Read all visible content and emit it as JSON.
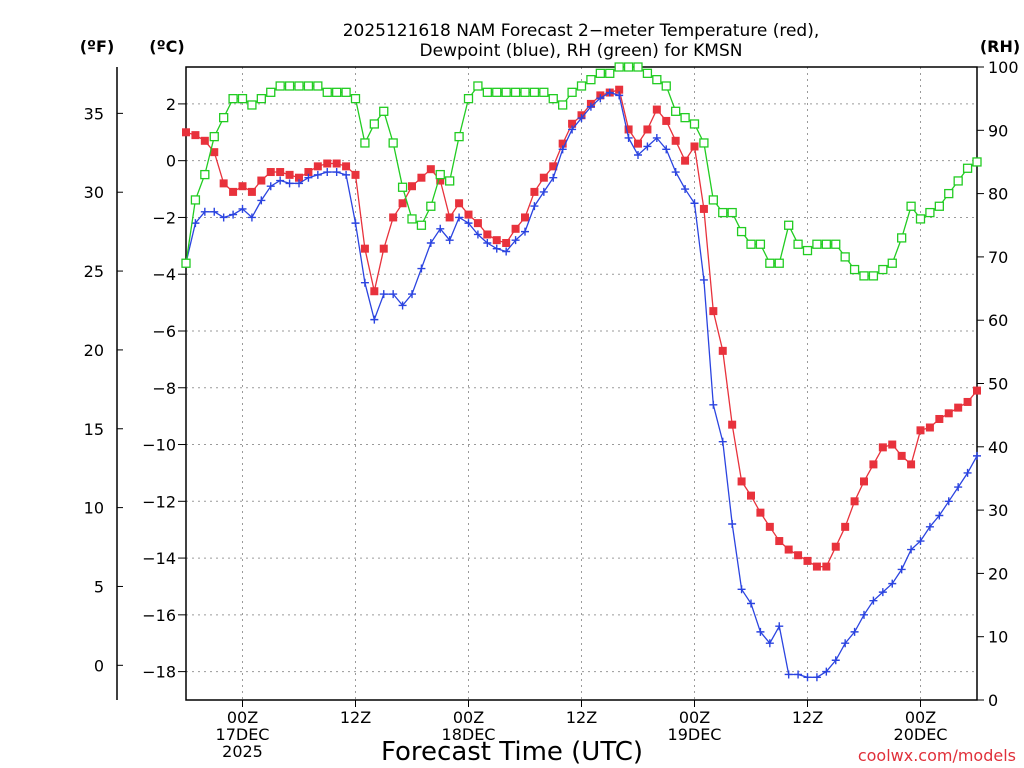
{
  "chart_data": {
    "type": "line",
    "title": "2025121618 NAM Forecast 2-meter Temperature (red), Dewpoint (blue), RH (green) for KMSN",
    "title_lines": [
      "2025121618 NAM Forecast 2−meter Temperature (red),",
      "Dewpoint (blue), RH (green) for KMSN"
    ],
    "xlabel": "Forecast Time (UTC)",
    "credit": "coolwx.com/models",
    "units": {
      "fahrenheit": "(ºF)",
      "celsius": "(ºC)",
      "rh": "(RH)"
    },
    "xlim_hours": [
      0,
      84
    ],
    "celsius_axis": {
      "ylim": [
        -19.0,
        3.3
      ],
      "ticks": [
        2,
        0,
        -2,
        -4,
        -6,
        -8,
        -10,
        -12,
        -14,
        -16,
        -18
      ],
      "tick_labels": [
        "2",
        "0",
        "−2",
        "−4",
        "−6",
        "−8",
        "−10",
        "−12",
        "−14",
        "−16",
        "−18"
      ]
    },
    "fahrenheit_axis": {
      "ticks": [
        35,
        30,
        25,
        20,
        15,
        10,
        5,
        0
      ],
      "tick_labels": [
        "35",
        "30",
        "25",
        "20",
        "15",
        "10",
        "5",
        "0"
      ]
    },
    "rh_axis": {
      "ylim": [
        0,
        100
      ],
      "ticks": [
        100,
        90,
        80,
        70,
        60,
        50,
        40,
        30,
        20,
        10,
        0
      ],
      "tick_labels": [
        "100",
        "90",
        "80",
        "70",
        "60",
        "50",
        "40",
        "30",
        "20",
        "10",
        "0"
      ]
    },
    "x_ticks": [
      {
        "hour": 6,
        "lines": [
          "00Z",
          "17DEC",
          "2025"
        ]
      },
      {
        "hour": 18,
        "lines": [
          "12Z"
        ]
      },
      {
        "hour": 30,
        "lines": [
          "00Z",
          "18DEC"
        ]
      },
      {
        "hour": 42,
        "lines": [
          "12Z"
        ]
      },
      {
        "hour": 54,
        "lines": [
          "00Z",
          "19DEC"
        ]
      },
      {
        "hour": 66,
        "lines": [
          "12Z"
        ]
      },
      {
        "hour": 78,
        "lines": [
          "00Z",
          "20DEC"
        ]
      }
    ],
    "series": [
      {
        "name": "Temperature",
        "unit": "C",
        "color": "#e8323c",
        "marker": "filled-square",
        "x": [
          0,
          1,
          2,
          3,
          4,
          5,
          6,
          7,
          8,
          9,
          10,
          11,
          12,
          13,
          14,
          15,
          16,
          17,
          18,
          19,
          20,
          21,
          22,
          23,
          24,
          25,
          26,
          27,
          28,
          29,
          30,
          31,
          32,
          33,
          34,
          35,
          36,
          37,
          38,
          39,
          40,
          41,
          42,
          43,
          44,
          45,
          46,
          47,
          48,
          49,
          50,
          51,
          52,
          53,
          54,
          55,
          56,
          57,
          58,
          59,
          60,
          61,
          62,
          63,
          64,
          65,
          66,
          67,
          68,
          69,
          70,
          71,
          72,
          73,
          74,
          75,
          76,
          77,
          78,
          79,
          80,
          81,
          82,
          83,
          84
        ],
        "values": [
          1.0,
          0.9,
          0.7,
          0.3,
          -0.8,
          -1.1,
          -0.9,
          -1.1,
          -0.7,
          -0.4,
          -0.4,
          -0.5,
          -0.6,
          -0.4,
          -0.2,
          -0.1,
          -0.1,
          -0.2,
          -0.5,
          -3.1,
          -4.6,
          -3.1,
          -2.0,
          -1.5,
          -0.9,
          -0.6,
          -0.3,
          -0.7,
          -2.0,
          -1.5,
          -1.9,
          -2.2,
          -2.6,
          -2.8,
          -2.9,
          -2.4,
          -2.0,
          -1.1,
          -0.6,
          -0.2,
          0.6,
          1.3,
          1.6,
          2.0,
          2.3,
          2.4,
          2.5,
          1.1,
          0.6,
          1.1,
          1.8,
          1.4,
          0.7,
          0.0,
          0.5,
          -1.7,
          -5.3,
          -6.7,
          -9.3,
          -11.3,
          -11.8,
          -12.4,
          -12.9,
          -13.4,
          -13.7,
          -13.9,
          -14.1,
          -14.3,
          -14.3,
          -13.6,
          -12.9,
          -12.0,
          -11.3,
          -10.7,
          -10.1,
          -10.0,
          -10.4,
          -10.7,
          -9.5,
          -9.4,
          -9.1,
          -8.9,
          -8.7,
          -8.5,
          -8.1
        ]
      },
      {
        "name": "Dewpoint",
        "unit": "C",
        "color": "#2b44e0",
        "marker": "plus",
        "x": [
          0,
          1,
          2,
          3,
          4,
          5,
          6,
          7,
          8,
          9,
          10,
          11,
          12,
          13,
          14,
          15,
          16,
          17,
          18,
          19,
          20,
          21,
          22,
          23,
          24,
          25,
          26,
          27,
          28,
          29,
          30,
          31,
          32,
          33,
          34,
          35,
          36,
          37,
          38,
          39,
          40,
          41,
          42,
          43,
          44,
          45,
          46,
          47,
          48,
          49,
          50,
          51,
          52,
          53,
          54,
          55,
          56,
          57,
          58,
          59,
          60,
          61,
          62,
          63,
          64,
          65,
          66,
          67,
          68,
          69,
          70,
          71,
          72,
          73,
          74,
          75,
          76,
          77,
          78,
          79,
          80,
          81,
          82,
          83,
          84
        ],
        "values": [
          -3.6,
          -2.2,
          -1.8,
          -1.8,
          -2.0,
          -1.9,
          -1.7,
          -2.0,
          -1.4,
          -0.9,
          -0.7,
          -0.8,
          -0.8,
          -0.6,
          -0.5,
          -0.4,
          -0.4,
          -0.5,
          -2.2,
          -4.3,
          -5.6,
          -4.7,
          -4.7,
          -5.1,
          -4.7,
          -3.8,
          -2.9,
          -2.4,
          -2.8,
          -2.0,
          -2.2,
          -2.6,
          -2.9,
          -3.1,
          -3.2,
          -2.8,
          -2.5,
          -1.6,
          -1.1,
          -0.6,
          0.4,
          1.1,
          1.5,
          1.9,
          2.2,
          2.4,
          2.3,
          0.8,
          0.2,
          0.5,
          0.8,
          0.4,
          -0.4,
          -1.0,
          -1.5,
          -4.2,
          -8.6,
          -9.9,
          -12.8,
          -15.1,
          -15.6,
          -16.6,
          -17.0,
          -16.4,
          -18.1,
          -18.1,
          -18.2,
          -18.2,
          -18.0,
          -17.6,
          -17.0,
          -16.6,
          -16.0,
          -15.5,
          -15.2,
          -14.9,
          -14.4,
          -13.7,
          -13.4,
          -12.9,
          -12.5,
          -12.0,
          -11.5,
          -11.0,
          -10.4
        ]
      },
      {
        "name": "RH",
        "unit": "%",
        "color": "#22cc22",
        "marker": "open-square",
        "x": [
          0,
          1,
          2,
          3,
          4,
          5,
          6,
          7,
          8,
          9,
          10,
          11,
          12,
          13,
          14,
          15,
          16,
          17,
          18,
          19,
          20,
          21,
          22,
          23,
          24,
          25,
          26,
          27,
          28,
          29,
          30,
          31,
          32,
          33,
          34,
          35,
          36,
          37,
          38,
          39,
          40,
          41,
          42,
          43,
          44,
          45,
          46,
          47,
          48,
          49,
          50,
          51,
          52,
          53,
          54,
          55,
          56,
          57,
          58,
          59,
          60,
          61,
          62,
          63,
          64,
          65,
          66,
          67,
          68,
          69,
          70,
          71,
          72,
          73,
          74,
          75,
          76,
          77,
          78,
          79,
          80,
          81,
          82,
          83,
          84
        ],
        "values": [
          69,
          79,
          83,
          89,
          92,
          95,
          95,
          94,
          95,
          96,
          97,
          97,
          97,
          97,
          97,
          96,
          96,
          96,
          95,
          88,
          91,
          93,
          88,
          81,
          76,
          75,
          78,
          83,
          82,
          89,
          95,
          97,
          96,
          96,
          96,
          96,
          96,
          96,
          96,
          95,
          94,
          96,
          97,
          98,
          99,
          99,
          100,
          100,
          100,
          99,
          98,
          97,
          93,
          92,
          91,
          88,
          79,
          77,
          77,
          74,
          72,
          72,
          69,
          69,
          75,
          72,
          71,
          72,
          72,
          72,
          70,
          68,
          67,
          67,
          68,
          69,
          73,
          78,
          76,
          77,
          78,
          80,
          82,
          84,
          85
        ]
      }
    ]
  }
}
